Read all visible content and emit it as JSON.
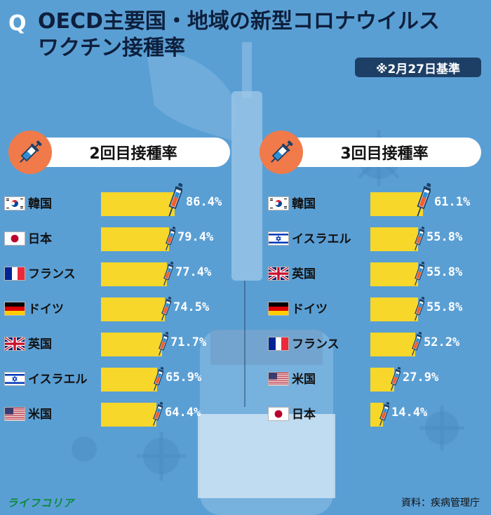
{
  "header": {
    "q_mark": "Q",
    "title": "OECD主要国・地域の新型コロナウイルスワクチン接種率",
    "date": "※2月27日基準"
  },
  "panels": [
    {
      "title": "2回目接種率"
    },
    {
      "title": "3回目接種率"
    }
  ],
  "chart_data": [
    {
      "type": "bar",
      "title": "2回目接種率",
      "orientation": "horizontal",
      "categories": [
        "韓国",
        "日本",
        "フランス",
        "ドイツ",
        "英国",
        "イスラエル",
        "米国"
      ],
      "flags": [
        "kr",
        "jp",
        "fr",
        "de",
        "gb",
        "il",
        "us"
      ],
      "values": [
        86.4,
        79.4,
        77.4,
        74.5,
        71.7,
        65.9,
        64.4
      ],
      "labels": [
        "86.4%",
        "79.4%",
        "77.4%",
        "74.5%",
        "71.7%",
        "65.9%",
        "64.4%"
      ],
      "unit": "%",
      "bar_color": "#f7d72a",
      "grid": false
    },
    {
      "type": "bar",
      "title": "3回目接種率",
      "orientation": "horizontal",
      "categories": [
        "韓国",
        "イスラエル",
        "英国",
        "ドイツ",
        "フランス",
        "米国",
        "日本"
      ],
      "flags": [
        "kr",
        "il",
        "gb",
        "de",
        "fr",
        "us",
        "jp"
      ],
      "values": [
        61.1,
        55.8,
        55.8,
        55.8,
        52.2,
        27.9,
        14.4
      ],
      "labels": [
        "61.1%",
        "55.8%",
        "55.8%",
        "55.8%",
        "52.2%",
        "27.9%",
        "14.4%"
      ],
      "unit": "%",
      "bar_color": "#f7d72a",
      "grid": false
    }
  ],
  "footer": {
    "brand": "ライフコリア",
    "source": "資料：疾病管理庁"
  },
  "colors": {
    "background": "#5a9fd4",
    "accent_circle": "#f07a4a",
    "title_text": "#0d1f3c",
    "date_badge": "#1d3f66"
  },
  "icons": [
    "syringe-icon",
    "virus-icon"
  ]
}
